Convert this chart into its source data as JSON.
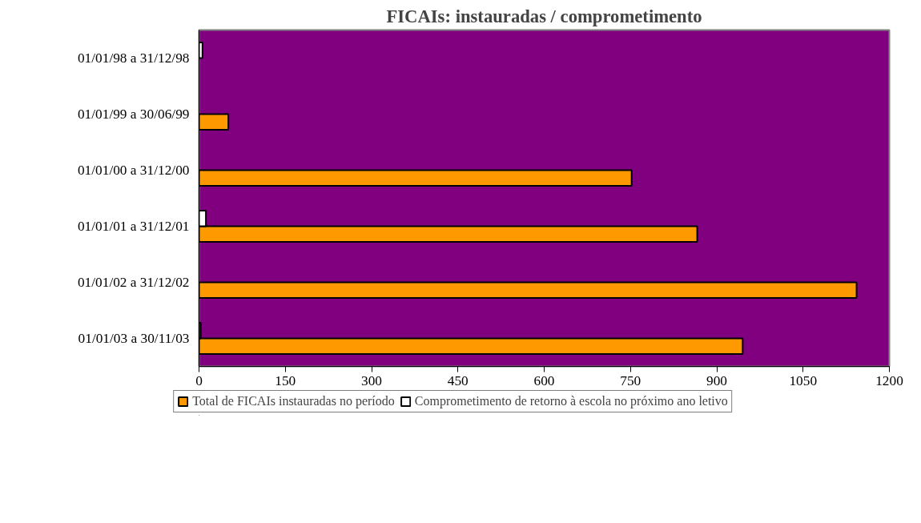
{
  "chart_data": {
    "type": "bar",
    "orientation": "horizontal",
    "title": "FICAIs: instauradas / comprometimento",
    "categories": [
      "01/01/98 a 31/12/98",
      "01/01/99 a 30/06/99",
      "01/01/00 a 31/12/00",
      "01/01/01 a 31/12/01",
      "01/01/02 a 31/12/02",
      "01/01/03 a 30/11/03"
    ],
    "series": [
      {
        "name": "Total de FICAIs instauradas no período",
        "color": "#ff9900",
        "values": [
          null,
          51,
          752,
          866,
          1143,
          945
        ]
      },
      {
        "name": "Comprometimento de retorno à escola no próximo ano letivo",
        "color": "#ffffff",
        "values": [
          6,
          null,
          null,
          12,
          null,
          3
        ]
      }
    ],
    "xlim": [
      0,
      1200
    ],
    "xticks": [
      0,
      150,
      300,
      450,
      600,
      750,
      900,
      1050,
      1200
    ],
    "grid": false,
    "legend": "bottom"
  }
}
